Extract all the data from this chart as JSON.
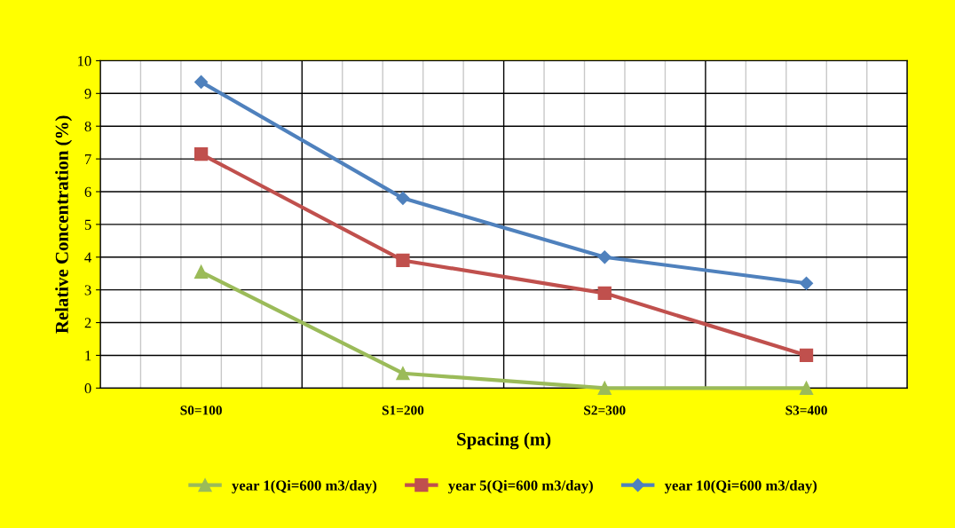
{
  "chart_data": {
    "type": "line",
    "xlabel": "Spacing (m)",
    "ylabel": "Relative Concentration (%)",
    "categories": [
      "S0=100",
      "S1=200",
      "S2=300",
      "S3=400"
    ],
    "series": [
      {
        "name": "year 1(Qi=600 m3/day)",
        "color": "#9bbb59",
        "marker": "triangle",
        "values": [
          3.55,
          0.45,
          0,
          0
        ]
      },
      {
        "name": "year 5(Qi=600 m3/day)",
        "color": "#c0504d",
        "marker": "square",
        "values": [
          7.15,
          3.9,
          2.9,
          1.0
        ]
      },
      {
        "name": "year 10(Qi=600 m3/day)",
        "color": "#4f81bd",
        "marker": "diamond",
        "values": [
          9.35,
          5.8,
          4.0,
          3.2
        ]
      }
    ],
    "ylim": [
      0,
      10
    ],
    "yticks": [
      0,
      1,
      2,
      3,
      4,
      5,
      6,
      7,
      8,
      9,
      10
    ],
    "grid": true,
    "legend": "bottom"
  }
}
